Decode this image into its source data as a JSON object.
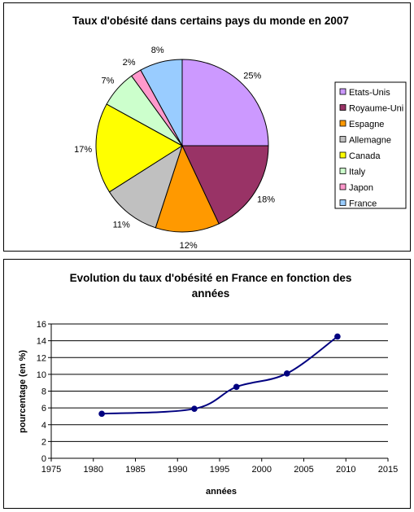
{
  "chart_data": [
    {
      "type": "pie",
      "title": "Taux d'obésité dans certains pays du monde en 2007",
      "categories": [
        "Etats-Unis",
        "Royaume-Uni",
        "Espagne",
        "Allemagne",
        "Canada",
        "Italy",
        "Japon",
        "France"
      ],
      "values": [
        25,
        18,
        12,
        11,
        17,
        7,
        2,
        8
      ],
      "value_labels": [
        "25%",
        "18%",
        "12%",
        "11%",
        "17%",
        "7%",
        "2%",
        "8%"
      ],
      "colors": [
        "#CC99FF",
        "#993366",
        "#FF9900",
        "#C0C0C0",
        "#FFFF00",
        "#CCFFCC",
        "#FF99CC",
        "#99CCFF"
      ],
      "legend": "right"
    },
    {
      "type": "line",
      "title": "Evolution du taux d'obésité en France en fonction des années",
      "title_lines": [
        "Evolution du taux d'obésité en France en fonction des",
        "années"
      ],
      "xlabel": "années",
      "ylabel": "pourcentage (en %)",
      "x": [
        1981,
        1992,
        1997,
        2003,
        2009
      ],
      "y": [
        5.3,
        5.9,
        8.5,
        10.1,
        14.5
      ],
      "xlim": [
        1975,
        2015
      ],
      "ylim": [
        0,
        16
      ],
      "xticks": [
        1975,
        1980,
        1985,
        1990,
        1995,
        2000,
        2005,
        2010,
        2015
      ],
      "yticks": [
        0,
        2,
        4,
        6,
        8,
        10,
        12,
        14,
        16
      ],
      "grid": "horizontal",
      "line_color": "#000080"
    }
  ]
}
